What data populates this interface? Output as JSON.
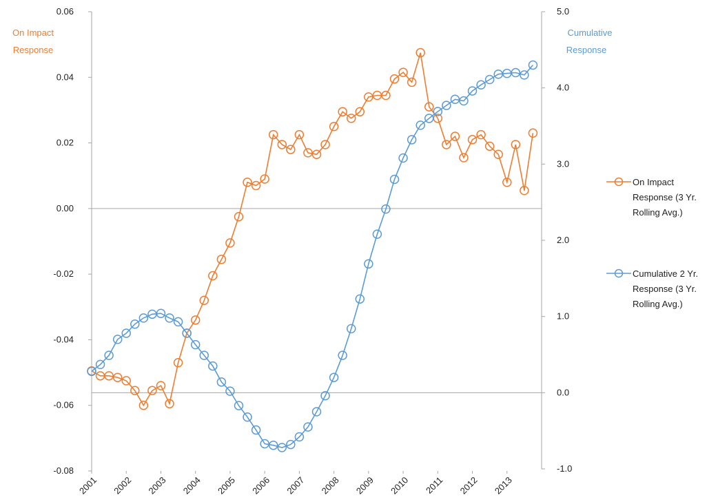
{
  "chart_data": {
    "type": "line",
    "left_axis_title": [
      "On Impact",
      "Response"
    ],
    "right_axis_title": [
      "Cumulative",
      "Response"
    ],
    "x_tick_labels": [
      "2001",
      "2002",
      "2003",
      "2004",
      "2005",
      "2006",
      "2007",
      "2008",
      "2009",
      "2010",
      "2011",
      "2012",
      "2013"
    ],
    "x_range": [
      2001,
      2014
    ],
    "y_left": {
      "range": [
        -0.08,
        0.06
      ],
      "ticks": [
        "0.06",
        "0.04",
        "0.02",
        "0.00",
        "-0.02",
        "-0.04",
        "-0.06",
        "-0.08"
      ],
      "tick_values": [
        0.06,
        0.04,
        0.02,
        0,
        -0.02,
        -0.04,
        -0.06,
        -0.08
      ]
    },
    "y_right": {
      "range": [
        -1.0,
        5.0
      ],
      "ticks": [
        "5.0",
        "4.0",
        "3.0",
        "2.0",
        "1.0",
        "0.0",
        "-1.0"
      ],
      "tick_values": [
        5,
        4,
        3,
        2,
        1,
        0,
        -1
      ]
    },
    "grid": false,
    "legend_position": "right",
    "series": [
      {
        "name": "On Impact Response (3 Yr. Rolling Avg.)",
        "legend_lines": [
          "On Impact",
          "Response (3 Yr.",
          "Rolling Avg.)"
        ],
        "axis": "left",
        "color": "#ED7D31",
        "x": [
          2001.0,
          2001.25,
          2001.5,
          2001.75,
          2002.0,
          2002.25,
          2002.5,
          2002.75,
          2003.0,
          2003.25,
          2003.5,
          2003.75,
          2004.0,
          2004.25,
          2004.5,
          2004.75,
          2005.0,
          2005.25,
          2005.5,
          2005.75,
          2006.0,
          2006.25,
          2006.5,
          2006.75,
          2007.0,
          2007.25,
          2007.5,
          2007.75,
          2008.0,
          2008.25,
          2008.5,
          2008.75,
          2009.0,
          2009.25,
          2009.5,
          2009.75,
          2010.0,
          2010.25,
          2010.5,
          2010.75,
          2011.0,
          2011.25,
          2011.5,
          2011.75,
          2012.0,
          2012.25,
          2012.5,
          2012.75,
          2013.0,
          2013.25,
          2013.5,
          2013.75
        ],
        "values": [
          -0.0495,
          -0.051,
          -0.051,
          -0.0515,
          -0.0525,
          -0.0555,
          -0.06,
          -0.0555,
          -0.054,
          -0.0595,
          -0.047,
          -0.038,
          -0.034,
          -0.028,
          -0.0205,
          -0.0155,
          -0.0105,
          -0.0025,
          0.008,
          0.007,
          0.009,
          0.0225,
          0.0195,
          0.018,
          0.0225,
          0.017,
          0.0165,
          0.0195,
          0.025,
          0.0295,
          0.0275,
          0.0295,
          0.034,
          0.0345,
          0.0345,
          0.0395,
          0.0415,
          0.0385,
          0.0475,
          0.031,
          0.0275,
          0.0195,
          0.022,
          0.0155,
          0.021,
          0.0225,
          0.019,
          0.0165,
          0.008,
          0.0195,
          0.0055,
          0.023
        ]
      },
      {
        "name": "Cumulative 2 Yr. Response (3 Yr. Rolling Avg.)",
        "legend_lines": [
          "Cumulative 2 Yr.",
          "Response (3 Yr.",
          "Rolling Avg.)"
        ],
        "axis": "right",
        "color": "#5B9BD5",
        "x": [
          2001.0,
          2001.25,
          2001.5,
          2001.75,
          2002.0,
          2002.25,
          2002.5,
          2002.75,
          2003.0,
          2003.25,
          2003.5,
          2003.75,
          2004.0,
          2004.25,
          2004.5,
          2004.75,
          2005.0,
          2005.25,
          2005.5,
          2005.75,
          2006.0,
          2006.25,
          2006.5,
          2006.75,
          2007.0,
          2007.25,
          2007.5,
          2007.75,
          2008.0,
          2008.25,
          2008.5,
          2008.75,
          2009.0,
          2009.25,
          2009.5,
          2009.75,
          2010.0,
          2010.25,
          2010.5,
          2010.75,
          2011.0,
          2011.25,
          2011.5,
          2011.75,
          2012.0,
          2012.25,
          2012.5,
          2012.75,
          2013.0,
          2013.25,
          2013.5,
          2013.75
        ],
        "values": [
          0.28,
          0.37,
          0.49,
          0.7,
          0.78,
          0.9,
          0.98,
          1.03,
          1.04,
          0.98,
          0.93,
          0.78,
          0.63,
          0.49,
          0.35,
          0.14,
          0.02,
          -0.17,
          -0.32,
          -0.49,
          -0.67,
          -0.69,
          -0.72,
          -0.68,
          -0.58,
          -0.45,
          -0.25,
          -0.04,
          0.2,
          0.49,
          0.84,
          1.23,
          1.69,
          2.08,
          2.41,
          2.8,
          3.08,
          3.32,
          3.51,
          3.6,
          3.69,
          3.77,
          3.85,
          3.83,
          3.96,
          4.04,
          4.11,
          4.18,
          4.19,
          4.2,
          4.17,
          4.3
        ]
      }
    ]
  }
}
